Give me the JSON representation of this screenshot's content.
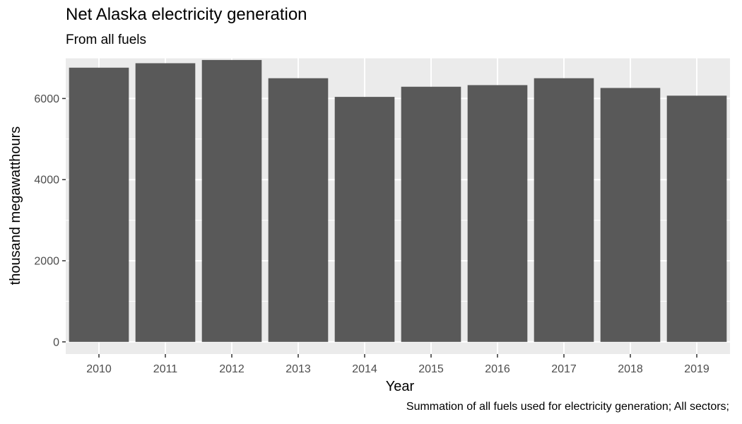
{
  "chart_data": {
    "type": "bar",
    "title": "Net Alaska electricity generation",
    "subtitle": "From all fuels",
    "caption": "Summation of all fuels used for electricity generation; All sectors;",
    "xlabel": "Year",
    "ylabel": "thousand megawatthours",
    "categories": [
      "2010",
      "2011",
      "2012",
      "2013",
      "2014",
      "2015",
      "2016",
      "2017",
      "2018",
      "2019"
    ],
    "values": [
      6760,
      6870,
      6950,
      6500,
      6040,
      6290,
      6330,
      6500,
      6260,
      6070
    ],
    "ylim": [
      -300,
      7000
    ],
    "yticks": [
      0,
      2000,
      4000,
      6000
    ],
    "bar_color": "#595959",
    "panel_background": "#ebebeb",
    "grid_color": "#ffffff",
    "grid": true,
    "legend": "none"
  }
}
